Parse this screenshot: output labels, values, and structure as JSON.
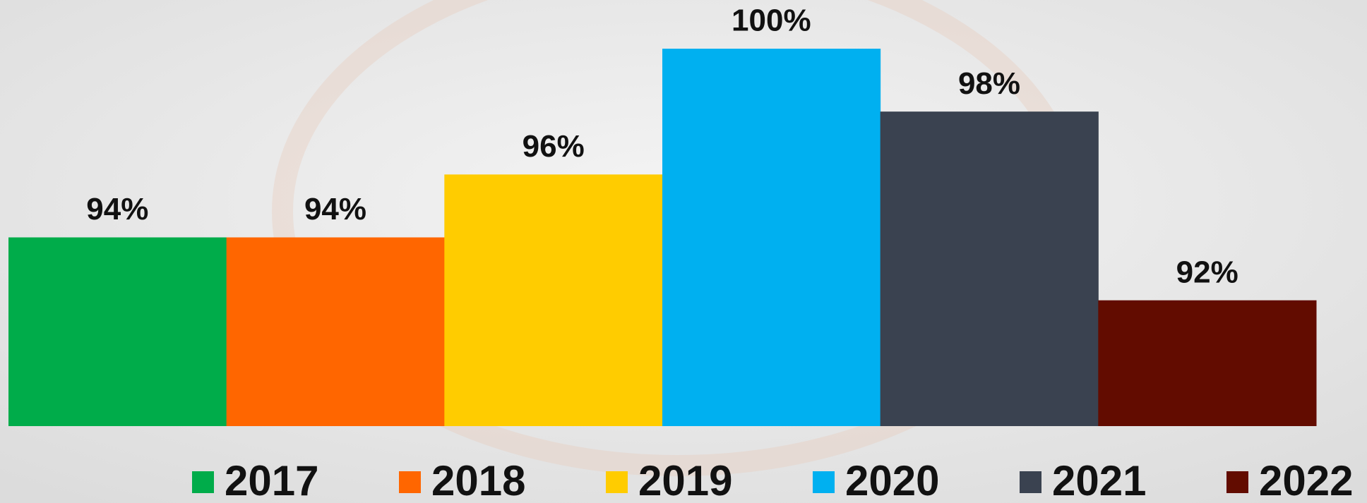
{
  "chart_data": {
    "type": "bar",
    "categories": [
      "2017",
      "2018",
      "2019",
      "2020",
      "2021",
      "2022"
    ],
    "values": [
      94,
      94,
      96,
      100,
      98,
      92
    ],
    "value_labels": [
      "94%",
      "94%",
      "96%",
      "100%",
      "98%",
      "92%"
    ],
    "colors": [
      "#00ac4a",
      "#ff6600",
      "#ffcc00",
      "#00b0f0",
      "#3a4250",
      "#620c00"
    ],
    "ylim": [
      88,
      100
    ]
  }
}
